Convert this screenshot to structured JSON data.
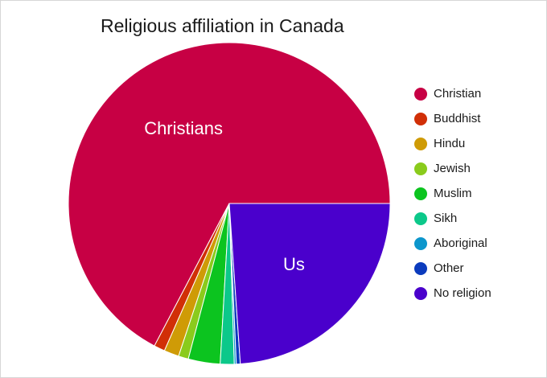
{
  "chart_data": {
    "type": "pie",
    "title": "Religious affiliation in Canada",
    "series": [
      {
        "name": "Christian",
        "value": 67.3,
        "color": "#c70044"
      },
      {
        "name": "Buddhist",
        "value": 1.1,
        "color": "#d12f07"
      },
      {
        "name": "Hindu",
        "value": 1.5,
        "color": "#cf9b06"
      },
      {
        "name": "Jewish",
        "value": 1.0,
        "color": "#8acb1c"
      },
      {
        "name": "Muslim",
        "value": 3.2,
        "color": "#0cc41f"
      },
      {
        "name": "Sikh",
        "value": 1.4,
        "color": "#0cc88a"
      },
      {
        "name": "Aboriginal",
        "value": 0.2,
        "color": "#0c96cc"
      },
      {
        "name": "Other",
        "value": 0.4,
        "color": "#0b3bbd"
      },
      {
        "name": "No religion",
        "value": 23.9,
        "color": "#4a00cc"
      }
    ],
    "slice_labels": [
      {
        "series": "Christian",
        "text": "Christians"
      },
      {
        "series": "No religion",
        "text": "Us"
      }
    ],
    "legend_position": "right"
  }
}
